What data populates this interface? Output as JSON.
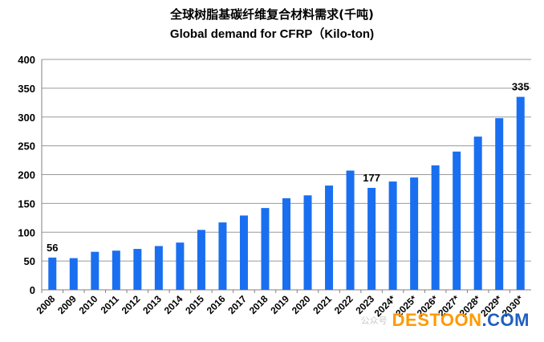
{
  "chart_data": {
    "type": "bar",
    "title": "全球树脂基碳纤维复合材料需求(千吨)",
    "subtitle": "Global demand for CFRP（Kilo-ton)",
    "xlabel": "",
    "ylabel": "",
    "categories": [
      "2008",
      "2009",
      "2010",
      "2011",
      "2012",
      "2013",
      "2014",
      "2015",
      "2016",
      "2017",
      "2018",
      "2019",
      "2020",
      "2021",
      "2022",
      "2023",
      "2024*",
      "2025*",
      "2026*",
      "2027*",
      "2028*",
      "2029*",
      "2030*"
    ],
    "values": [
      56,
      55,
      66,
      68,
      71,
      76,
      82,
      104,
      117,
      129,
      142,
      159,
      164,
      181,
      207,
      177,
      188,
      195,
      216,
      240,
      266,
      298,
      335
    ],
    "data_labels": {
      "2008": "56",
      "2023": "177",
      "2030*": "335"
    },
    "ylim": [
      0,
      400
    ],
    "yticks": [
      "0",
      "50",
      "100",
      "150",
      "200",
      "250",
      "300",
      "350",
      "400"
    ],
    "grid": true,
    "legend": "none",
    "bar_color": "#1a6ff0"
  },
  "watermark": {
    "ghost_text": "公众号",
    "logo_part1": "DESTOON",
    "logo_part2": ".COM"
  }
}
